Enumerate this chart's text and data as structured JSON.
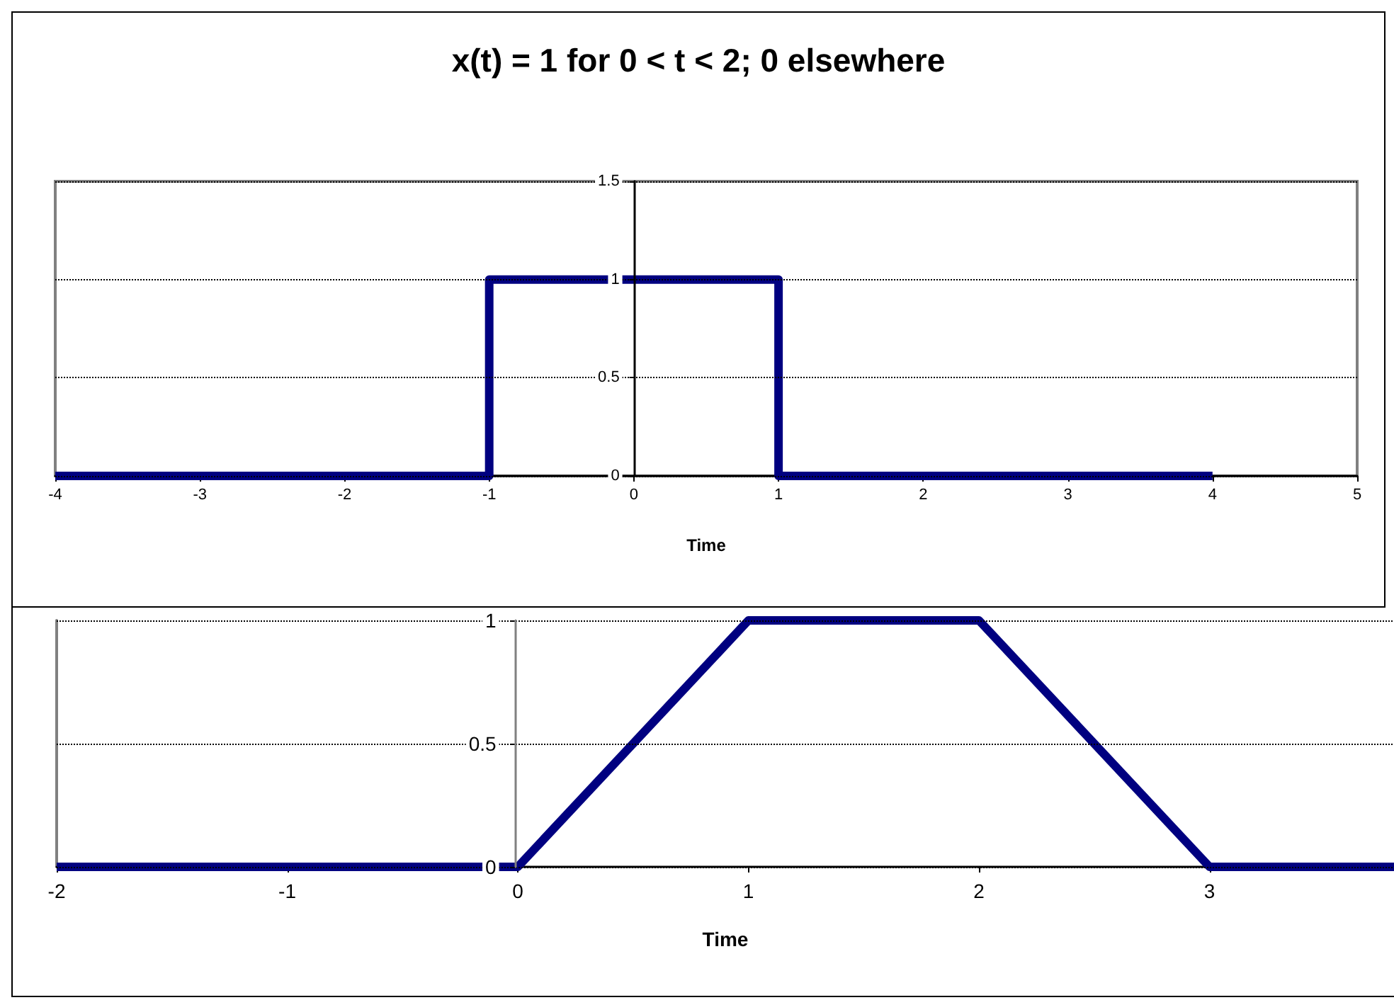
{
  "chart_data": [
    {
      "type": "line",
      "title": "x(t) = 1 for 0 < t < 2; 0 elsewhere",
      "xlabel": "Time",
      "x": [
        -4,
        -1,
        -1,
        1,
        1,
        4
      ],
      "values": [
        0,
        0,
        1,
        1,
        0,
        0
      ],
      "color": "#000080",
      "xlim": [
        -4,
        5
      ],
      "xticks": [
        -4,
        -3,
        -2,
        -1,
        0,
        1,
        2,
        3,
        4,
        5
      ],
      "ylim": [
        0,
        1.5
      ],
      "yticks": [
        0,
        0.5,
        1,
        1.5
      ],
      "grid": "y",
      "marker": "none",
      "line_style": "solid"
    },
    {
      "type": "line",
      "xlabel": "Time",
      "x": [
        -2,
        0,
        1,
        2,
        3,
        3.8
      ],
      "values": [
        0,
        0,
        1,
        1,
        0,
        0
      ],
      "color": "#000080",
      "xlim": [
        -2,
        3.8
      ],
      "xticks": [
        -2,
        -1,
        0,
        1,
        2,
        3
      ],
      "ylim": [
        0,
        1
      ],
      "yticks": [
        0,
        0.5,
        1
      ],
      "grid": "y",
      "marker": "none",
      "line_style": "solid"
    }
  ]
}
